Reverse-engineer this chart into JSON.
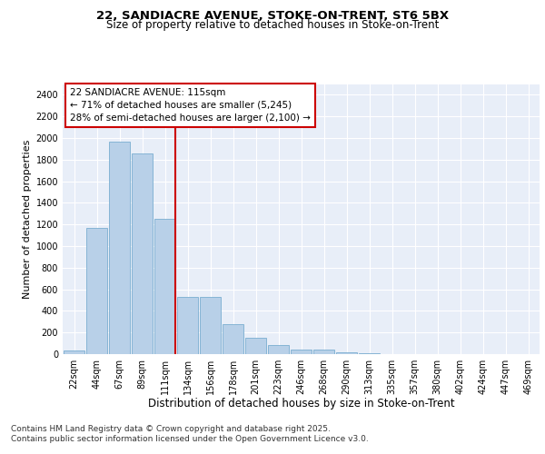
{
  "title_line1": "22, SANDIACRE AVENUE, STOKE-ON-TRENT, ST6 5BX",
  "title_line2": "Size of property relative to detached houses in Stoke-on-Trent",
  "xlabel": "Distribution of detached houses by size in Stoke-on-Trent",
  "ylabel": "Number of detached properties",
  "categories": [
    "22sqm",
    "44sqm",
    "67sqm",
    "89sqm",
    "111sqm",
    "134sqm",
    "156sqm",
    "178sqm",
    "201sqm",
    "223sqm",
    "246sqm",
    "268sqm",
    "290sqm",
    "313sqm",
    "335sqm",
    "357sqm",
    "380sqm",
    "402sqm",
    "424sqm",
    "447sqm",
    "469sqm"
  ],
  "values": [
    30,
    1170,
    1970,
    1860,
    1250,
    530,
    530,
    275,
    150,
    85,
    45,
    45,
    15,
    5,
    3,
    3,
    3,
    3,
    3,
    3,
    3
  ],
  "bar_color": "#b8d0e8",
  "bar_edge_color": "#7aaed0",
  "vline_index": 4,
  "vline_color": "#cc0000",
  "annotation_text": "22 SANDIACRE AVENUE: 115sqm\n← 71% of detached houses are smaller (5,245)\n28% of semi-detached houses are larger (2,100) →",
  "annotation_box_facecolor": "#ffffff",
  "annotation_box_edgecolor": "#cc0000",
  "ylim": [
    0,
    2500
  ],
  "yticks": [
    0,
    200,
    400,
    600,
    800,
    1000,
    1200,
    1400,
    1600,
    1800,
    2000,
    2200,
    2400
  ],
  "footer_line1": "Contains HM Land Registry data © Crown copyright and database right 2025.",
  "footer_line2": "Contains public sector information licensed under the Open Government Licence v3.0.",
  "bg_color": "#e8eef8",
  "grid_color": "#ffffff",
  "title_fontsize": 9.5,
  "subtitle_fontsize": 8.5,
  "xlabel_fontsize": 8.5,
  "ylabel_fontsize": 8,
  "tick_fontsize": 7,
  "annotation_fontsize": 7.5,
  "footer_fontsize": 6.5
}
